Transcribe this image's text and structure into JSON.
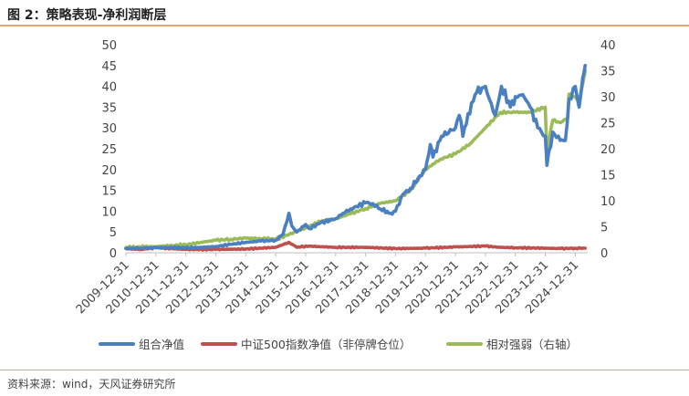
{
  "header": {
    "title": "图 2：策略表现-净利润断层"
  },
  "footer": {
    "source": "资料来源：wind，天风证券研究所"
  },
  "colors": {
    "accent_rule": "#e8a46a"
  },
  "chart_data": {
    "type": "line",
    "title": "",
    "x_ticks": [
      "2009-12-31",
      "2010-12-31",
      "2011-12-31",
      "2012-12-31",
      "2013-12-31",
      "2014-12-31",
      "2015-12-31",
      "2016-12-31",
      "2017-12-31",
      "2018-12-31",
      "2019-12-31",
      "2020-12-31",
      "2021-12-31",
      "2022-12-31",
      "2023-12-31",
      "2024-12-31"
    ],
    "xlim": [
      "2009-12-31",
      "2025-05-31"
    ],
    "y_left": {
      "lim": [
        0,
        50
      ],
      "ticks": [
        0,
        5,
        10,
        15,
        20,
        25,
        30,
        35,
        40,
        45,
        50
      ]
    },
    "y_right": {
      "lim": [
        0,
        40
      ],
      "ticks": [
        0,
        5,
        10,
        15,
        20,
        25,
        30,
        35,
        40
      ]
    },
    "legend_position": "bottom",
    "series": [
      {
        "name": "组合净值",
        "color": "#4a7fc1",
        "axis": "left",
        "points": [
          [
            "2009-12-31",
            1.0
          ],
          [
            "2010-06-30",
            1.1
          ],
          [
            "2010-12-31",
            1.2
          ],
          [
            "2011-06-30",
            1.3
          ],
          [
            "2011-12-31",
            1.2
          ],
          [
            "2012-06-30",
            1.3
          ],
          [
            "2012-12-31",
            1.5
          ],
          [
            "2013-06-30",
            2.0
          ],
          [
            "2013-12-31",
            2.5
          ],
          [
            "2014-06-30",
            2.8
          ],
          [
            "2014-12-31",
            3.0
          ],
          [
            "2015-03-31",
            4.5
          ],
          [
            "2015-06-10",
            9.5
          ],
          [
            "2015-07-15",
            6.5
          ],
          [
            "2015-09-15",
            5.0
          ],
          [
            "2015-12-31",
            6.8
          ],
          [
            "2016-02-15",
            5.8
          ],
          [
            "2016-06-30",
            7.2
          ],
          [
            "2016-12-31",
            8.2
          ],
          [
            "2017-03-31",
            9.5
          ],
          [
            "2017-06-30",
            10.5
          ],
          [
            "2017-12-31",
            12.0
          ],
          [
            "2018-03-31",
            11.8
          ],
          [
            "2018-06-30",
            10.5
          ],
          [
            "2018-10-31",
            9.5
          ],
          [
            "2018-12-31",
            10.0
          ],
          [
            "2019-03-31",
            14.0
          ],
          [
            "2019-06-30",
            15.5
          ],
          [
            "2019-12-31",
            20.0
          ],
          [
            "2020-02-28",
            26.0
          ],
          [
            "2020-03-31",
            23.0
          ],
          [
            "2020-07-15",
            28.0
          ],
          [
            "2020-12-31",
            30.0
          ],
          [
            "2021-02-15",
            33.0
          ],
          [
            "2021-03-31",
            28.0
          ],
          [
            "2021-07-15",
            36.0
          ],
          [
            "2021-09-15",
            38.5
          ],
          [
            "2021-12-31",
            40.0
          ],
          [
            "2022-02-15",
            37.0
          ],
          [
            "2022-04-30",
            33.0
          ],
          [
            "2022-07-15",
            40.0
          ],
          [
            "2022-10-31",
            35.0
          ],
          [
            "2022-12-31",
            37.5
          ],
          [
            "2023-03-31",
            38.0
          ],
          [
            "2023-06-30",
            35.0
          ],
          [
            "2023-09-30",
            30.0
          ],
          [
            "2023-12-31",
            28.0
          ],
          [
            "2024-01-20",
            21.0
          ],
          [
            "2024-03-31",
            29.0
          ],
          [
            "2024-06-30",
            27.0
          ],
          [
            "2024-08-31",
            27.0
          ],
          [
            "2024-10-15",
            37.0
          ],
          [
            "2024-12-31",
            40.0
          ],
          [
            "2025-02-15",
            35.0
          ],
          [
            "2025-03-31",
            42.0
          ],
          [
            "2025-04-30",
            45.0
          ]
        ]
      },
      {
        "name": "中证500指数净值（非停牌仓位）",
        "color": "#c0504d",
        "axis": "left",
        "points": [
          [
            "2009-12-31",
            1.0
          ],
          [
            "2010-06-30",
            0.8
          ],
          [
            "2010-12-31",
            1.2
          ],
          [
            "2011-12-31",
            0.8
          ],
          [
            "2012-12-31",
            0.8
          ],
          [
            "2013-12-31",
            0.9
          ],
          [
            "2014-12-31",
            1.3
          ],
          [
            "2015-06-10",
            2.5
          ],
          [
            "2015-09-15",
            1.3
          ],
          [
            "2015-12-31",
            1.6
          ],
          [
            "2016-12-31",
            1.3
          ],
          [
            "2017-12-31",
            1.3
          ],
          [
            "2018-12-31",
            1.0
          ],
          [
            "2019-12-31",
            1.1
          ],
          [
            "2020-12-31",
            1.4
          ],
          [
            "2021-12-31",
            1.6
          ],
          [
            "2022-06-30",
            1.3
          ],
          [
            "2022-12-31",
            1.2
          ],
          [
            "2023-12-31",
            1.1
          ],
          [
            "2024-06-30",
            1.0
          ],
          [
            "2024-12-31",
            1.1
          ],
          [
            "2025-04-30",
            1.1
          ]
        ]
      },
      {
        "name": "相对强弱（右轴）",
        "color": "#9bbb59",
        "axis": "right",
        "points": [
          [
            "2009-12-31",
            1.0
          ],
          [
            "2010-12-31",
            1.2
          ],
          [
            "2011-12-31",
            1.5
          ],
          [
            "2012-06-30",
            2.0
          ],
          [
            "2012-12-31",
            2.4
          ],
          [
            "2013-06-30",
            2.6
          ],
          [
            "2013-12-31",
            2.8
          ],
          [
            "2014-06-30",
            2.7
          ],
          [
            "2014-12-31",
            2.6
          ],
          [
            "2015-06-10",
            3.5
          ],
          [
            "2015-12-31",
            4.8
          ],
          [
            "2016-06-30",
            6.0
          ],
          [
            "2016-12-31",
            6.5
          ],
          [
            "2017-06-30",
            7.5
          ],
          [
            "2017-12-31",
            8.5
          ],
          [
            "2018-06-30",
            9.5
          ],
          [
            "2018-12-31",
            10.0
          ],
          [
            "2019-06-30",
            12.0
          ],
          [
            "2019-12-31",
            16.0
          ],
          [
            "2020-06-30",
            18.0
          ],
          [
            "2020-12-31",
            19.0
          ],
          [
            "2021-06-30",
            21.0
          ],
          [
            "2021-12-31",
            24.0
          ],
          [
            "2022-06-30",
            27.0
          ],
          [
            "2022-12-31",
            27.0
          ],
          [
            "2023-06-30",
            27.0
          ],
          [
            "2023-12-31",
            28.0
          ],
          [
            "2024-01-20",
            19.5
          ],
          [
            "2024-03-31",
            25.5
          ],
          [
            "2024-06-30",
            25.0
          ],
          [
            "2024-09-30",
            26.0
          ],
          [
            "2024-10-15",
            30.5
          ],
          [
            "2024-12-31",
            30.0
          ],
          [
            "2025-02-15",
            29.0
          ],
          [
            "2025-04-30",
            35.0
          ]
        ]
      }
    ]
  }
}
